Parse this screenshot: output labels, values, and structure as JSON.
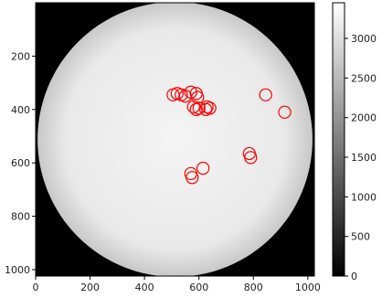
{
  "chart_data": {
    "type": "heatmap",
    "image": {
      "description_colormap": "gray",
      "background_value": 0,
      "disk_center": [
        512,
        512
      ],
      "disk_radius": 505,
      "disk_value_center": 3300,
      "disk_value_edge": 2700
    },
    "xlim": [
      0,
      1024
    ],
    "ylim": [
      1024,
      0
    ],
    "xticks": [
      0,
      200,
      400,
      600,
      800,
      1000
    ],
    "yticks": [
      200,
      400,
      600,
      800,
      1000
    ],
    "colorbar": {
      "vmin": 0,
      "vmax": 3450,
      "ticks": [
        0,
        500,
        1000,
        1500,
        2000,
        2500,
        3000
      ],
      "colormap": "gray"
    },
    "markers": {
      "shape": "circle",
      "color": "#ff0000",
      "radius": 22,
      "points": [
        [
          505,
          345
        ],
        [
          520,
          340
        ],
        [
          535,
          345
        ],
        [
          550,
          350
        ],
        [
          570,
          335
        ],
        [
          590,
          340
        ],
        [
          595,
          355
        ],
        [
          580,
          390
        ],
        [
          590,
          400
        ],
        [
          600,
          395
        ],
        [
          630,
          390
        ],
        [
          640,
          395
        ],
        [
          625,
          400
        ],
        [
          845,
          345
        ],
        [
          915,
          410
        ],
        [
          785,
          565
        ],
        [
          790,
          580
        ],
        [
          615,
          620
        ],
        [
          570,
          640
        ],
        [
          575,
          655
        ]
      ]
    },
    "title": "",
    "xlabel": "",
    "ylabel": ""
  }
}
